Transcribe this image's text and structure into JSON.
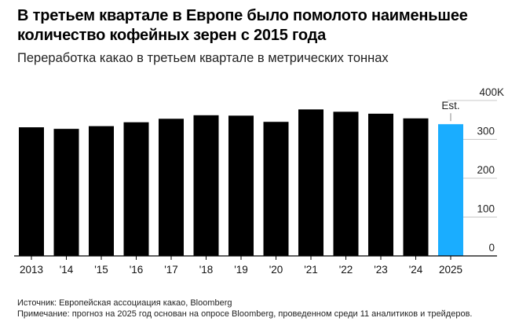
{
  "header": {
    "title": "В третьем квартале в Европе было помолото наименьшее количество кофейных зерен с 2015 года",
    "subtitle": "Переработка какао в третьем квартале в метрических тоннах"
  },
  "footer": {
    "source": "Источник: Европейская ассоциация какао, Bloomberg",
    "note": "Примечание: прогноз на 2025 год основан на опросе Bloomberg, проведенном среди 11 аналитиков и трейдеров."
  },
  "colors": {
    "actual_bar": "#000000",
    "estimate_bar": "#1AADFF",
    "grid": "#c8c8c8",
    "axis": "#000000"
  },
  "chart_data": {
    "type": "bar",
    "categories": [
      "2013",
      "'14",
      "'15",
      "'16",
      "'17",
      "'18",
      "'19",
      "'20",
      "'21",
      "'22",
      "'23",
      "'24",
      "2025"
    ],
    "values": [
      331,
      327,
      334,
      344,
      353,
      362,
      361,
      345,
      377,
      371,
      366,
      354,
      339
    ],
    "estimate_index": 12,
    "annotation": "Est.",
    "y_ticks": [
      0,
      100,
      200,
      300
    ],
    "y_tick_labels": [
      "0",
      "100",
      "200",
      "300",
      "400K"
    ],
    "y_top_value": 400,
    "ylim": [
      0,
      400
    ],
    "grid": true,
    "y_axis_position": "right"
  }
}
